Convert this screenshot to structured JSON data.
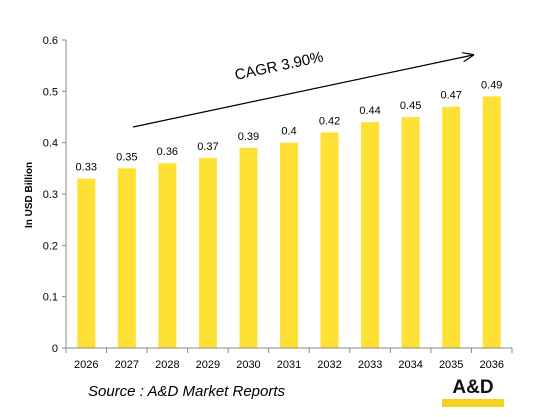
{
  "chart_data": {
    "type": "bar",
    "categories": [
      "2026",
      "2027",
      "2028",
      "2029",
      "2030",
      "2031",
      "2032",
      "2033",
      "2034",
      "2035",
      "2036"
    ],
    "values": [
      0.33,
      0.35,
      0.36,
      0.37,
      0.39,
      0.4,
      0.42,
      0.44,
      0.45,
      0.47,
      0.49
    ],
    "data_labels": [
      "0.33",
      "0.35",
      "0.36",
      "0.37",
      "0.39",
      "0.4",
      "0.42",
      "0.44",
      "0.45",
      "0.47",
      "0.49"
    ],
    "ylabel": "In USD Billion",
    "xlabel": "",
    "ylim": [
      0,
      0.6
    ],
    "yticks": [
      "0",
      "0.1",
      "0.2",
      "0.3",
      "0.4",
      "0.5",
      "0.6"
    ],
    "annotation": "CAGR 3.90%",
    "grid": false,
    "bar_color": "#FFE135"
  },
  "source": "Source : A&D Market Reports",
  "logo_text": "A&D"
}
